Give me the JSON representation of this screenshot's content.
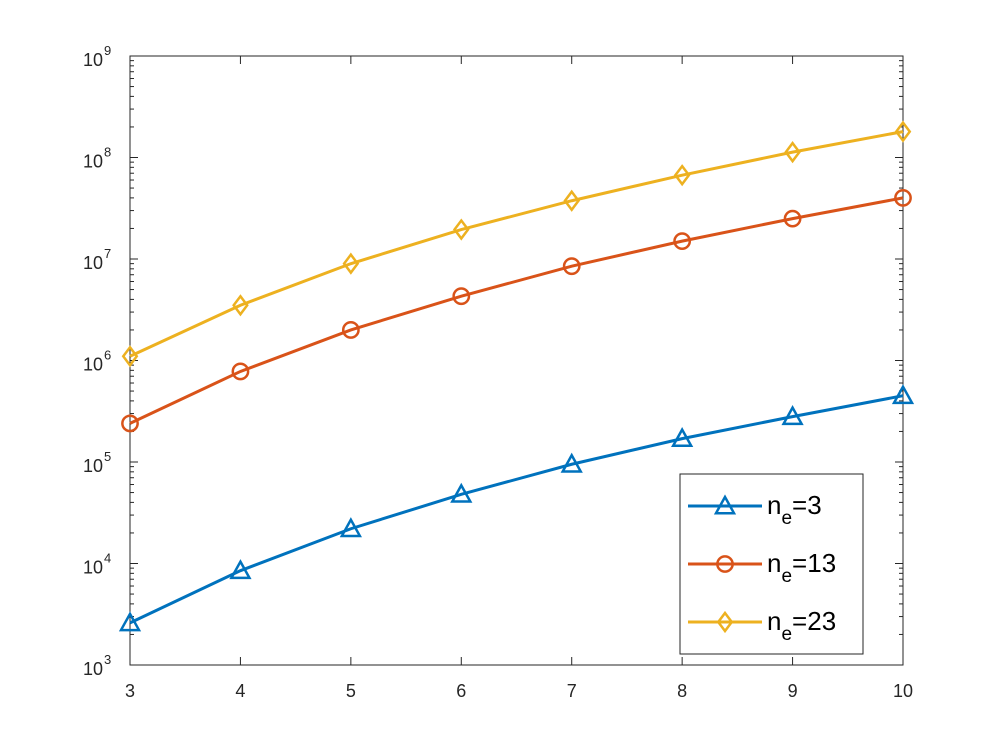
{
  "chart_data": {
    "type": "line",
    "title": "",
    "xlabel": "",
    "ylabel": "",
    "x": [
      3,
      4,
      5,
      6,
      7,
      8,
      9,
      10
    ],
    "xlim": [
      3,
      10
    ],
    "xticks": [
      "3",
      "4",
      "5",
      "6",
      "7",
      "8",
      "9",
      "10"
    ],
    "yscale": "log",
    "ylim": [
      1000,
      1000000000
    ],
    "yticks": [
      {
        "base": "10",
        "exp": "3"
      },
      {
        "base": "10",
        "exp": "4"
      },
      {
        "base": "10",
        "exp": "5"
      },
      {
        "base": "10",
        "exp": "6"
      },
      {
        "base": "10",
        "exp": "7"
      },
      {
        "base": "10",
        "exp": "8"
      },
      {
        "base": "10",
        "exp": "9"
      }
    ],
    "grid": false,
    "legend_position": "bottom-right",
    "series": [
      {
        "name": "n_e=3",
        "label_main": "n",
        "label_sub": "e",
        "label_rest": "=3",
        "marker": "triangle",
        "color": "#0072BD",
        "values": [
          2600,
          8500,
          22000,
          48000,
          95000,
          170000,
          280000,
          450000
        ]
      },
      {
        "name": "n_e=13",
        "label_main": "n",
        "label_sub": "e",
        "label_rest": "=13",
        "marker": "circle",
        "color": "#D95319",
        "values": [
          240000,
          780000,
          2000000,
          4300000,
          8500000,
          15000000,
          25000000,
          40000000
        ]
      },
      {
        "name": "n_e=23",
        "label_main": "n",
        "label_sub": "e",
        "label_rest": "=23",
        "marker": "diamond",
        "color": "#EDB120",
        "values": [
          1100000,
          3500000,
          9000000,
          19500000,
          37500000,
          67000000,
          113000000,
          180000000
        ]
      }
    ]
  }
}
